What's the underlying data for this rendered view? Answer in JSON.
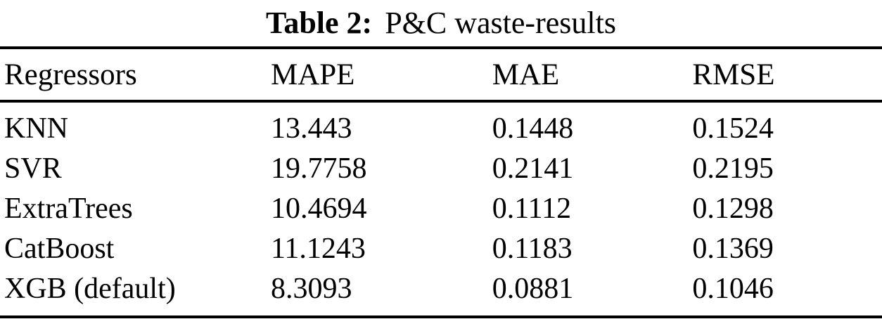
{
  "caption": {
    "label": "Table 2:",
    "title": "P&C waste-results"
  },
  "table": {
    "columns": [
      "Regressors",
      "MAPE",
      "MAE",
      "RMSE"
    ],
    "rows": [
      [
        "KNN",
        "13.443",
        "0.1448",
        "0.1524"
      ],
      [
        "SVR",
        "19.7758",
        "0.2141",
        "0.2195"
      ],
      [
        "ExtraTrees",
        "10.4694",
        "0.1112",
        "0.1298"
      ],
      [
        "CatBoost",
        "11.1243",
        "0.1183",
        "0.1369"
      ],
      [
        "XGB (default)",
        "8.3093",
        "0.0881",
        "0.1046"
      ]
    ]
  },
  "colors": {
    "text": "#000000",
    "background": "#ffffff",
    "rule": "#000000"
  },
  "chart_data": {
    "type": "table",
    "title": "Table 2: P&C waste-results",
    "columns": [
      "Regressors",
      "MAPE",
      "MAE",
      "RMSE"
    ],
    "rows": [
      [
        "KNN",
        13.443,
        0.1448,
        0.1524
      ],
      [
        "SVR",
        19.7758,
        0.2141,
        0.2195
      ],
      [
        "ExtraTrees",
        10.4694,
        0.1112,
        0.1298
      ],
      [
        "CatBoost",
        11.1243,
        0.1183,
        0.1369
      ],
      [
        "XGB (default)",
        8.3093,
        0.0881,
        0.1046
      ]
    ]
  }
}
